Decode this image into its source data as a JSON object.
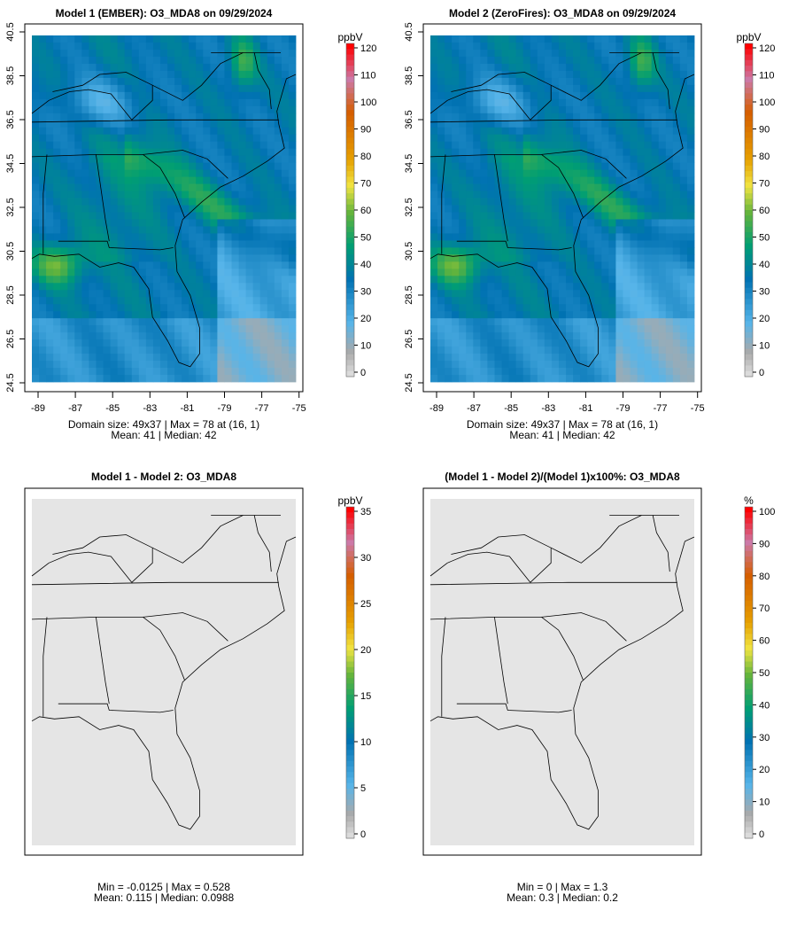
{
  "panels": [
    {
      "title": "Model 1 (EMBER): O3_MDA8 on 09/29/2024",
      "unit": "ppbV",
      "colorbar_ticks": [
        "0",
        "10",
        "20",
        "30",
        "40",
        "50",
        "60",
        "70",
        "80",
        "90",
        "100",
        "110",
        "120"
      ],
      "colorbar_max": 120,
      "x_ticks": [
        "-89",
        "-87",
        "-85",
        "-83",
        "-81",
        "-79",
        "-77",
        "-75"
      ],
      "y_ticks": [
        "24.5",
        "26.5",
        "28.5",
        "30.5",
        "32.5",
        "34.5",
        "36.5",
        "38.5",
        "40.5"
      ],
      "stats_line1": "Domain size: 49x37 | Max = 78 at (16, 1)",
      "stats_line2": "Mean: 41 |  Median: 42"
    },
    {
      "title": "Model 2 (ZeroFires): O3_MDA8 on 09/29/2024",
      "unit": "ppbV",
      "colorbar_ticks": [
        "0",
        "10",
        "20",
        "30",
        "40",
        "50",
        "60",
        "70",
        "80",
        "90",
        "100",
        "110",
        "120"
      ],
      "colorbar_max": 120,
      "x_ticks": [
        "-89",
        "-87",
        "-85",
        "-83",
        "-81",
        "-79",
        "-77",
        "-75"
      ],
      "y_ticks": [
        "24.5",
        "26.5",
        "28.5",
        "30.5",
        "32.5",
        "34.5",
        "36.5",
        "38.5",
        "40.5"
      ],
      "stats_line1": "Domain size: 49x37 | Max = 78 at (16, 1)",
      "stats_line2": "Mean: 41 |  Median: 42"
    },
    {
      "title": "Model 1 - Model 2: O3_MDA8",
      "unit": "ppbV",
      "colorbar_ticks": [
        "0",
        "5",
        "10",
        "15",
        "20",
        "25",
        "30",
        "35"
      ],
      "colorbar_max": 35,
      "stats_line1": "Min = -0.0125 | Max = 0.528",
      "stats_line2": "Mean: 0.115 |  Median: 0.0988"
    },
    {
      "title": "(Model 1 - Model 2)/(Model 1)x100%: O3_MDA8",
      "unit": "%",
      "colorbar_ticks": [
        "0",
        "10",
        "20",
        "30",
        "40",
        "50",
        "60",
        "70",
        "80",
        "90",
        "100"
      ],
      "colorbar_max": 100,
      "stats_line1": "Min = 0 | Max = 1.3",
      "stats_line2": "Mean: 0.3 |  Median: 0.2"
    }
  ],
  "chart_data": [
    {
      "type": "heatmap",
      "title": "Model 1 (EMBER): O3_MDA8 on 09/29/2024",
      "grid_size": [
        49,
        37
      ],
      "xlim": [
        -89,
        -75
      ],
      "ylim": [
        24.5,
        40.5
      ],
      "color_range": [
        0,
        120
      ],
      "unit": "ppbV",
      "max": 78,
      "max_location": [
        16,
        1
      ],
      "mean": 41,
      "median": 42
    },
    {
      "type": "heatmap",
      "title": "Model 2 (ZeroFires): O3_MDA8 on 09/29/2024",
      "grid_size": [
        49,
        37
      ],
      "xlim": [
        -89,
        -75
      ],
      "ylim": [
        24.5,
        40.5
      ],
      "color_range": [
        0,
        120
      ],
      "unit": "ppbV",
      "max": 78,
      "max_location": [
        16,
        1
      ],
      "mean": 41,
      "median": 42
    },
    {
      "type": "heatmap",
      "title": "Model 1 - Model 2: O3_MDA8",
      "color_range": [
        0,
        35
      ],
      "unit": "ppbV",
      "min": -0.0125,
      "max": 0.528,
      "mean": 0.115,
      "median": 0.0988
    },
    {
      "type": "heatmap",
      "title": "(Model 1 - Model 2)/(Model 1)x100%: O3_MDA8",
      "color_range": [
        0,
        100
      ],
      "unit": "%",
      "min": 0,
      "max": 1.3,
      "mean": 0.3,
      "median": 0.2
    }
  ]
}
